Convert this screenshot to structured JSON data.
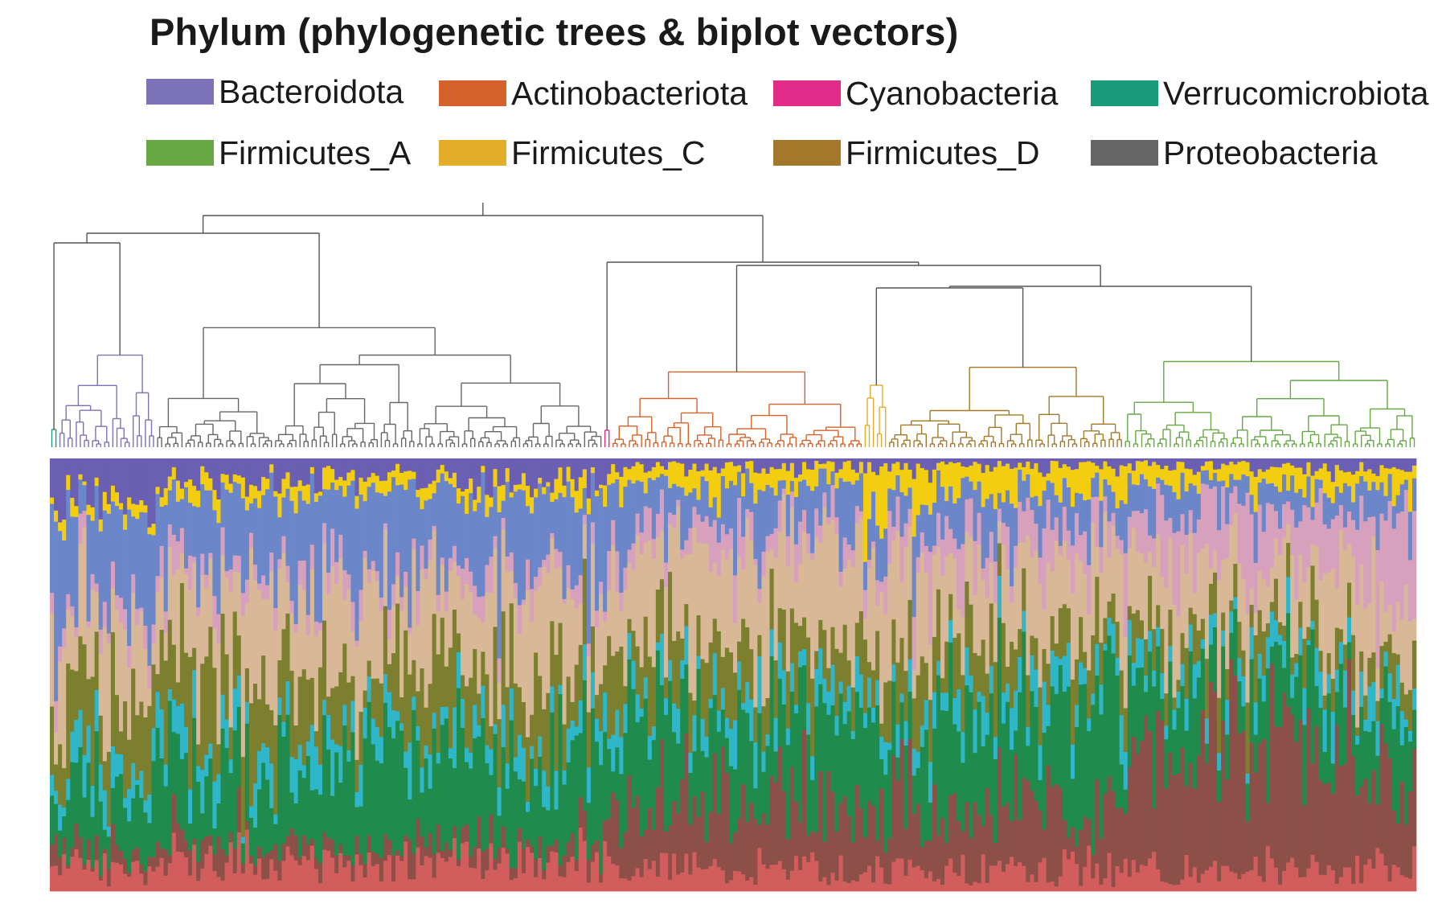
{
  "chart_data": {
    "type": "bar",
    "subtype": "stacked-100-with-dendrogram",
    "title": "Phylum (phylogenetic trees & biplot vectors)",
    "legend_placement": "top",
    "legend": [
      {
        "name": "Bacteroidota",
        "color": "#7b72b8"
      },
      {
        "name": "Actinobacteriota",
        "color": "#d4622a"
      },
      {
        "name": "Cyanobacteria",
        "color": "#e22c8a"
      },
      {
        "name": "Verrucomicrobiota",
        "color": "#1a9a78"
      },
      {
        "name": "Firmicutes_A",
        "color": "#65a844"
      },
      {
        "name": "Firmicutes_C",
        "color": "#e3ad2a"
      },
      {
        "name": "Firmicutes_D",
        "color": "#a3782b"
      },
      {
        "name": "Proteobacteria",
        "color": "#666666"
      }
    ],
    "clades": [
      {
        "name": "Verrucomicrobiota",
        "samples": 2
      },
      {
        "name": "Bacteroidota",
        "samples": 24
      },
      {
        "name": "Proteobacteria",
        "samples": 110
      },
      {
        "name": "Cyanobacteria",
        "samples": 2
      },
      {
        "name": "Actinobacteriota",
        "samples": 62
      },
      {
        "name": "Firmicutes_C",
        "samples": 6
      },
      {
        "name": "Firmicutes_D",
        "samples": 58
      },
      {
        "name": "Firmicutes_A",
        "samples": 72
      }
    ],
    "stack_palette": [
      "#d25d5d",
      "#8c5048",
      "#1f8b4c",
      "#2fb6c9",
      "#7b7f2e",
      "#d8b896",
      "#d7a0bd",
      "#6b86c9",
      "#f2cd10",
      "#6a5fb3"
    ],
    "stack_profiles": [
      {
        "clade": "Verrucomicrobiota",
        "values": [
          0.05,
          0.05,
          0.12,
          0.05,
          0.1,
          0.2,
          0.05,
          0.25,
          0.03,
          0.1
        ]
      },
      {
        "clade": "Bacteroidota",
        "values": [
          0.06,
          0.03,
          0.14,
          0.06,
          0.16,
          0.18,
          0.04,
          0.2,
          0.03,
          0.1
        ]
      },
      {
        "clade": "Proteobacteria",
        "values": [
          0.06,
          0.04,
          0.2,
          0.06,
          0.15,
          0.2,
          0.04,
          0.17,
          0.03,
          0.05
        ]
      },
      {
        "clade": "Cyanobacteria",
        "values": [
          0.06,
          0.05,
          0.2,
          0.05,
          0.14,
          0.22,
          0.05,
          0.16,
          0.04,
          0.03
        ]
      },
      {
        "clade": "Actinobacteriota",
        "values": [
          0.05,
          0.16,
          0.2,
          0.06,
          0.12,
          0.2,
          0.05,
          0.1,
          0.04,
          0.02
        ]
      },
      {
        "clade": "Firmicutes_C",
        "values": [
          0.05,
          0.12,
          0.2,
          0.06,
          0.1,
          0.18,
          0.05,
          0.08,
          0.14,
          0.02
        ]
      },
      {
        "clade": "Firmicutes_D",
        "values": [
          0.05,
          0.15,
          0.22,
          0.06,
          0.1,
          0.18,
          0.08,
          0.08,
          0.06,
          0.02
        ]
      },
      {
        "clade": "Firmicutes_A",
        "values": [
          0.05,
          0.3,
          0.14,
          0.05,
          0.07,
          0.15,
          0.12,
          0.06,
          0.04,
          0.02
        ]
      }
    ],
    "ylim": [
      0,
      1
    ],
    "grid": false
  }
}
